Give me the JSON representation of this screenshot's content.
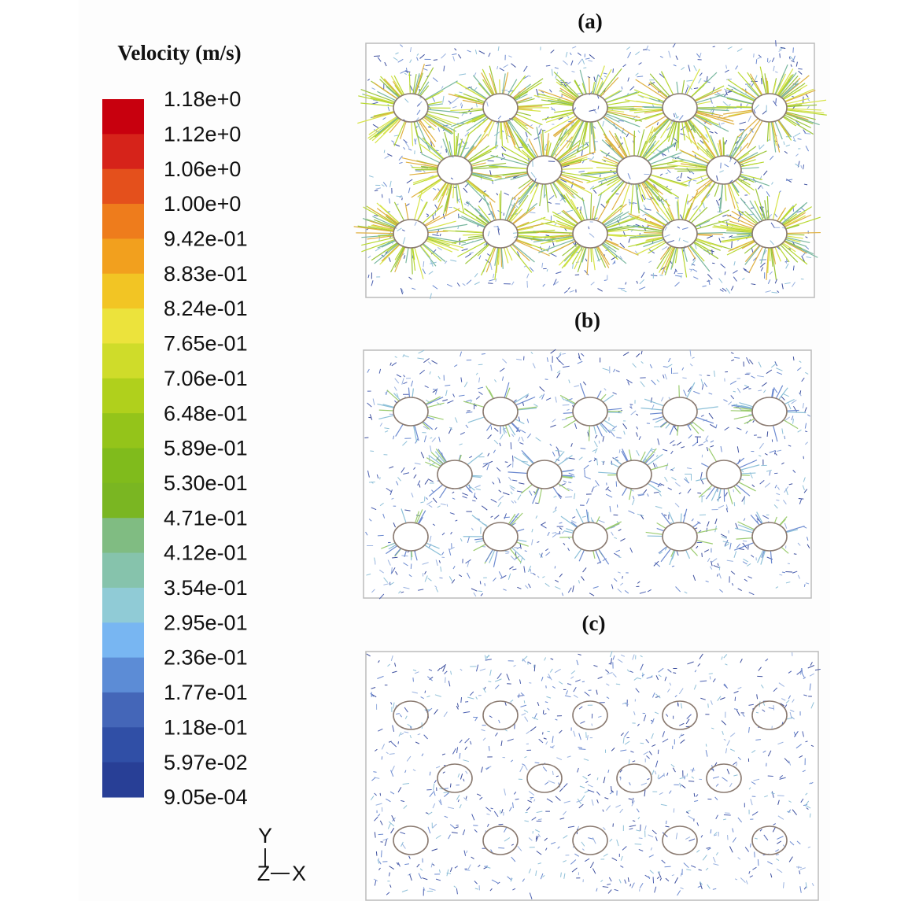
{
  "legend": {
    "title": "Velocity (m/s)",
    "labels": [
      "1.18e+0",
      "1.12e+0",
      "1.06e+0",
      "1.00e+0",
      "9.42e-01",
      "8.83e-01",
      "8.24e-01",
      "7.65e-01",
      "7.06e-01",
      "6.48e-01",
      "5.89e-01",
      "5.30e-01",
      "4.71e-01",
      "4.12e-01",
      "3.54e-01",
      "2.95e-01",
      "2.36e-01",
      "1.77e-01",
      "1.18e-01",
      "5.97e-02",
      "9.05e-04"
    ],
    "colors": [
      "#c8000e",
      "#d6231a",
      "#e4501c",
      "#ee7c1c",
      "#f2a01e",
      "#f2c524",
      "#ece33c",
      "#cfdc2a",
      "#b0d01c",
      "#94c41a",
      "#80bb1c",
      "#7ab622",
      "#80bc82",
      "#86c3ac",
      "#90cbd6",
      "#78b6f2",
      "#5c8cd6",
      "#4466b8",
      "#304fa6",
      "#283f96"
    ]
  },
  "panels": [
    {
      "label": "(a)"
    },
    {
      "label": "(b)"
    },
    {
      "label": "(c)"
    }
  ],
  "axes": {
    "y": "Y",
    "z": "Z",
    "x": "X"
  }
}
